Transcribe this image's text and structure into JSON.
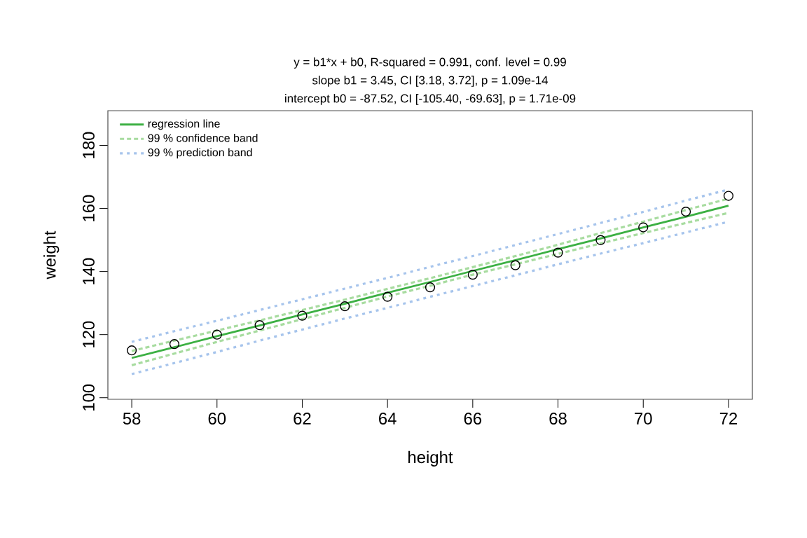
{
  "chart_data": {
    "type": "line",
    "title": "y = b1*x + b0, R-squared = 0.991, conf. level = 0.99",
    "subtitle": "slope b1 = 3.45, CI [3.18, 3.72], p = 1.09e-14",
    "annotations": [
      "intercept b0 = -87.52, CI [-105.40, -69.63], p = 1.71e-09"
    ],
    "xlabel": "height",
    "ylabel": "weight",
    "x": [
      58,
      59,
      60,
      61,
      62,
      63,
      64,
      65,
      66,
      67,
      68,
      69,
      70,
      71,
      72
    ],
    "xlim": [
      57.44,
      72.56
    ],
    "ylim": [
      99.5,
      191
    ],
    "xticks": [
      58,
      60,
      62,
      64,
      66,
      68,
      70,
      72
    ],
    "yticks": [
      100,
      120,
      140,
      160,
      180
    ],
    "grid": false,
    "legend": "top left",
    "series": [
      {
        "type": "scatter",
        "marker": "circle",
        "color": "#000000",
        "values": [
          115,
          117,
          120,
          123,
          126,
          129,
          132,
          135,
          139,
          142,
          146,
          150,
          154,
          159,
          164
        ]
      },
      {
        "name": "regression line",
        "color": "#3cb043",
        "line_style": "solid",
        "values": [
          112.6,
          116.0,
          119.5,
          122.9,
          126.4,
          129.8,
          133.3,
          136.7,
          140.2,
          143.6,
          147.1,
          150.5,
          154.0,
          157.4,
          160.9
        ]
      },
      {
        "name": "99 % confidence band",
        "color": "#a8dca0",
        "line_style": "dashed",
        "values": [
          114.8,
          118.1,
          121.3,
          124.5,
          127.8,
          131.1,
          134.5,
          137.9,
          141.4,
          144.9,
          148.5,
          152.2,
          155.8,
          159.5,
          163.1
        ]
      },
      {
        "color": "#a8dca0",
        "line_style": "dashed",
        "values": [
          110.3,
          114.0,
          117.7,
          121.3,
          124.9,
          128.5,
          132.1,
          135.5,
          139.0,
          142.3,
          145.6,
          148.9,
          152.2,
          155.4,
          158.6
        ]
      },
      {
        "name": "99 % prediction band",
        "color": "#a6c4ec",
        "line_style": "dotted",
        "values": [
          117.7,
          121.1,
          124.4,
          127.8,
          131.2,
          134.6,
          138.0,
          141.5,
          144.9,
          148.4,
          151.9,
          155.4,
          158.9,
          162.5,
          166.0
        ]
      },
      {
        "color": "#a6c4ec",
        "line_style": "dotted",
        "values": [
          107.5,
          111.0,
          114.5,
          118.1,
          121.6,
          125.1,
          128.5,
          132.0,
          135.4,
          138.8,
          142.3,
          145.7,
          149.0,
          152.4,
          155.8
        ]
      }
    ]
  }
}
